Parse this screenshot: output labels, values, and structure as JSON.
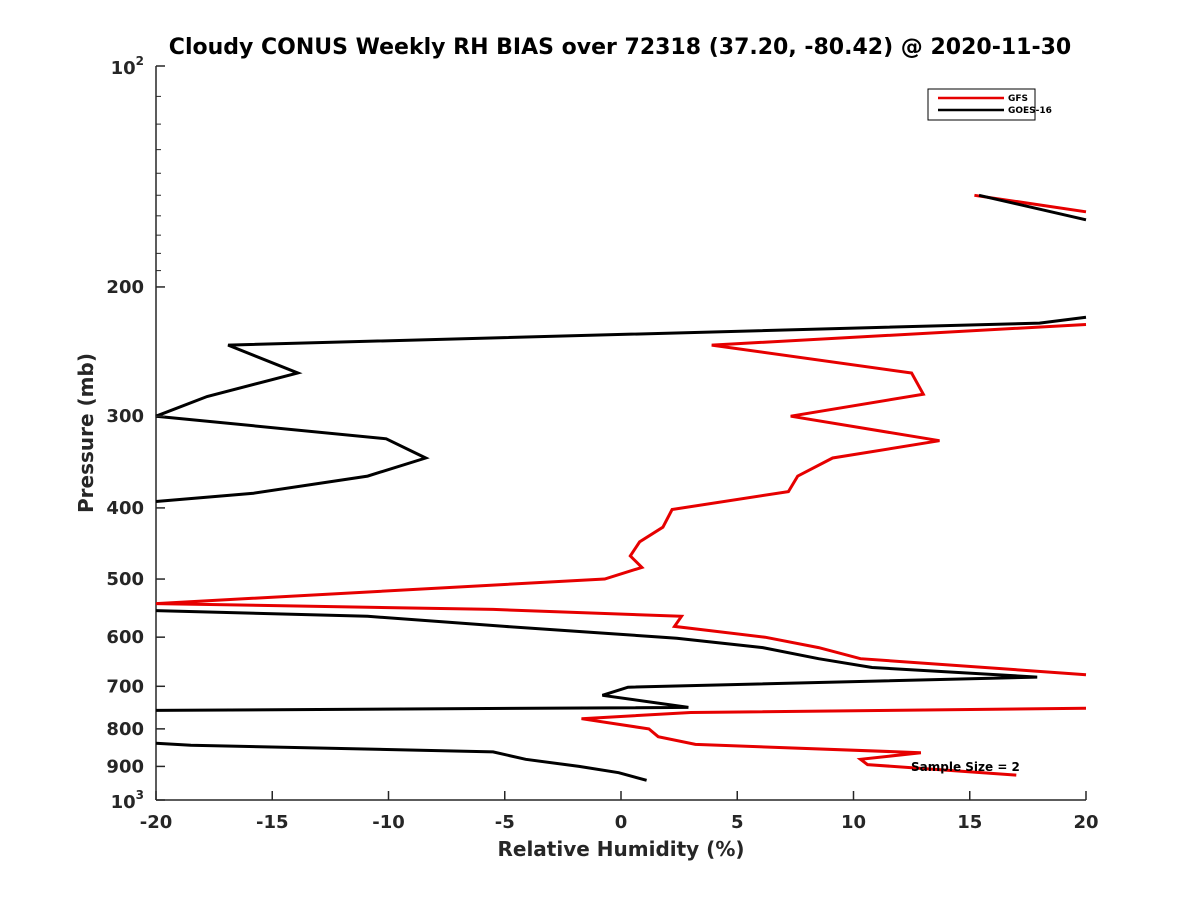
{
  "chart_data": {
    "type": "line",
    "title": "Cloudy CONUS Weekly RH BIAS over 72318 (37.20, -80.42) @ 2020-11-30",
    "xlabel": "Relative Humidity (%)",
    "ylabel": "Pressure (mb)",
    "xlim": [
      -20,
      20
    ],
    "ylim": [
      100,
      1000
    ],
    "yscale": "log",
    "y_reversed": true,
    "x_ticks": [
      -20,
      -15,
      -10,
      -5,
      0,
      5,
      10,
      15,
      20
    ],
    "x_tick_labels": [
      "-20",
      "-15",
      "-10",
      "-5",
      "0",
      "5",
      "10",
      "15",
      "20"
    ],
    "y_ticks": [
      200,
      300,
      400,
      500,
      600,
      700,
      800,
      900
    ],
    "y_tick_labels": [
      "200",
      "300",
      "400",
      "500",
      "600",
      "700",
      "800",
      "900"
    ],
    "y_decade_labels": [
      {
        "value": 100,
        "base": "10",
        "exp": "2"
      },
      {
        "value": 1000,
        "base": "10",
        "exp": "3"
      }
    ],
    "grid": false,
    "legend_position": "top-right",
    "annotation": "Sample Size = 2",
    "series": [
      {
        "name": "GFS",
        "color": "#e60000",
        "segments": [
          [
            [
              15.2,
              150
            ],
            [
              20,
              158
            ]
          ],
          [
            [
              20,
              225
            ],
            [
              3.9,
              240
            ],
            [
              12.5,
              262
            ],
            [
              13,
              280
            ],
            [
              7.3,
              300
            ],
            [
              13.7,
              324
            ],
            [
              9.1,
              342
            ],
            [
              7.6,
              362
            ],
            [
              7.2,
              380
            ],
            [
              2.2,
              402
            ],
            [
              1.8,
              425
            ],
            [
              0.8,
              445
            ],
            [
              0.4,
              465
            ],
            [
              0.9,
              482
            ],
            [
              -0.7,
              500
            ],
            [
              -20,
              540
            ],
            [
              -5.5,
              550
            ],
            [
              2.6,
              562
            ],
            [
              2.3,
              580
            ],
            [
              6.2,
              600
            ],
            [
              8.5,
              620
            ],
            [
              10.3,
              642
            ],
            [
              20,
              675
            ]
          ],
          [
            [
              20,
              750
            ],
            [
              3.0,
              760
            ],
            [
              -1.7,
              775
            ],
            [
              1.2,
              800
            ],
            [
              1.6,
              820
            ],
            [
              3.2,
              840
            ],
            [
              12.9,
              862
            ],
            [
              10.3,
              880
            ],
            [
              10.6,
              895
            ],
            [
              17.0,
              925
            ]
          ]
        ]
      },
      {
        "name": "GOES-16",
        "color": "#000000",
        "segments": [
          [
            [
              15.4,
              150
            ],
            [
              20,
              162
            ]
          ],
          [
            [
              20,
              220
            ],
            [
              18,
              224
            ],
            [
              -16.9,
              240
            ],
            [
              -13.9,
              262
            ],
            [
              -17.8,
              282
            ],
            [
              -20,
              300
            ],
            [
              -10.1,
              322
            ],
            [
              -8.4,
              342
            ],
            [
              -10.9,
              362
            ],
            [
              -15.8,
              382
            ],
            [
              -20,
              392
            ]
          ],
          [
            [
              -20,
              552
            ],
            [
              -10.9,
              562
            ],
            [
              -5.0,
              580
            ],
            [
              2.4,
              602
            ],
            [
              6.1,
              620
            ],
            [
              8.5,
              642
            ],
            [
              10.8,
              660
            ],
            [
              17.9,
              680
            ],
            [
              0.3,
              702
            ],
            [
              -0.8,
              720
            ],
            [
              2.9,
              748
            ],
            [
              -20,
              755
            ]
          ],
          [
            [
              -20,
              837
            ],
            [
              -18.5,
              842
            ],
            [
              -5.5,
              860
            ],
            [
              -4.1,
              880
            ],
            [
              -1.8,
              900
            ],
            [
              -0.1,
              918
            ],
            [
              1.1,
              940
            ]
          ]
        ]
      }
    ]
  }
}
